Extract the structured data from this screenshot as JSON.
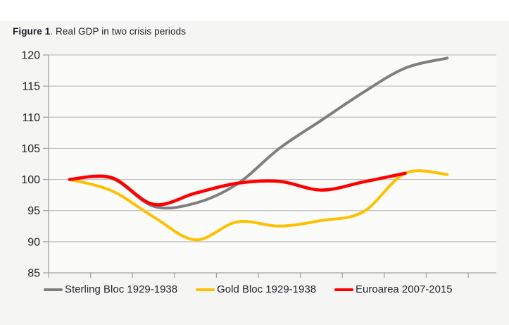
{
  "header": {
    "figure_label": "Figure 1",
    "figure_title_rest": ". Real GDP in two crisis periods"
  },
  "chart_data": {
    "type": "line",
    "title": "Figure 1. Real GDP in two crisis periods",
    "smoothed_lines": true,
    "grid": true,
    "legend_position": "bottom",
    "x_axis": {
      "label": "",
      "n_categories": 10,
      "tick_labels": [],
      "note": "no visible x tick labels; 11 tick marks; categories are years 1-10 of each crisis (1929-1938 / 2007-2015)"
    },
    "y_axis": {
      "label": "",
      "min": 85,
      "max": 120,
      "step": 5,
      "tick_labels": [
        "85",
        "90",
        "95",
        "100",
        "105",
        "110",
        "115",
        "120"
      ]
    },
    "series": [
      {
        "name": "Sterling Bloc 1929-1938",
        "color": "#7f7f7f",
        "stroke_width": 4,
        "values": [
          100,
          100.2,
          95.7,
          96.2,
          99.3,
          105,
          109.5,
          114,
          117.9,
          119.5
        ]
      },
      {
        "name": "Gold Bloc 1929-1938",
        "color": "#ffc000",
        "stroke_width": 4,
        "values": [
          100,
          98.2,
          94,
          90.3,
          93.2,
          92.5,
          93.4,
          94.8,
          101,
          100.8
        ]
      },
      {
        "name": "Euroarea 2007-2015",
        "color": "#fe0000",
        "stroke_width": 4.5,
        "values": [
          100,
          100.3,
          96,
          97.8,
          99.4,
          99.7,
          98.3,
          99.6,
          101
        ]
      }
    ],
    "colors": {
      "panel_background": "#f5f5f4",
      "plot_background": "#fbfbfa",
      "gridline": "#bfbfbf",
      "axis_line": "#a0a0a0",
      "tick_label": "#1b1b24"
    }
  }
}
